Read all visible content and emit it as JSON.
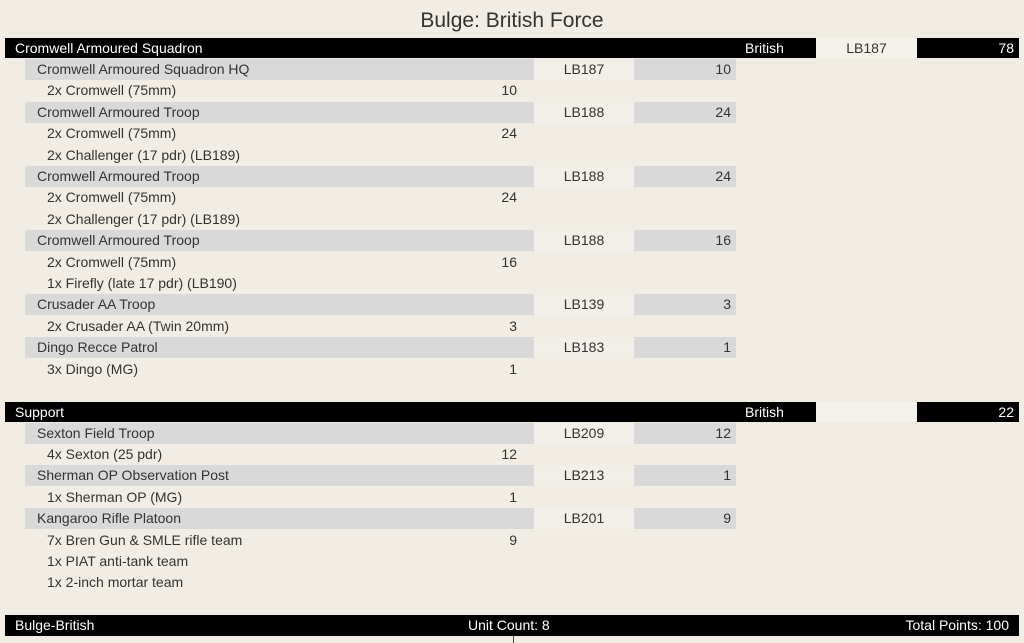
{
  "title": "Bulge: British Force",
  "sections": [
    {
      "name": "Cromwell Armoured Squadron",
      "nation": "British",
      "code": "LB187",
      "points": "78",
      "units": [
        {
          "name": "Cromwell Armoured Squadron HQ",
          "code": "LB187",
          "points": "10",
          "items": [
            {
              "text": "2x Cromwell (75mm)",
              "points": "10"
            }
          ]
        },
        {
          "name": "Cromwell Armoured Troop",
          "code": "LB188",
          "points": "24",
          "items": [
            {
              "text": "2x Cromwell (75mm)",
              "points": "24"
            },
            {
              "text": "2x Challenger (17 pdr) (LB189)",
              "points": ""
            }
          ]
        },
        {
          "name": "Cromwell Armoured Troop",
          "code": "LB188",
          "points": "24",
          "items": [
            {
              "text": "2x Cromwell (75mm)",
              "points": "24"
            },
            {
              "text": "2x Challenger (17 pdr) (LB189)",
              "points": ""
            }
          ]
        },
        {
          "name": "Cromwell Armoured Troop",
          "code": "LB188",
          "points": "16",
          "items": [
            {
              "text": "2x Cromwell (75mm)",
              "points": "16"
            },
            {
              "text": "1x Firefly (late 17 pdr) (LB190)",
              "points": ""
            }
          ]
        },
        {
          "name": "Crusader AA Troop",
          "code": "LB139",
          "points": "3",
          "items": [
            {
              "text": "2x Crusader AA (Twin 20mm)",
              "points": "3"
            }
          ]
        },
        {
          "name": "Dingo Recce Patrol",
          "code": "LB183",
          "points": "1",
          "items": [
            {
              "text": "3x Dingo (MG)",
              "points": "1"
            }
          ]
        }
      ]
    },
    {
      "name": "Support",
      "nation": "British",
      "code": "",
      "points": "22",
      "units": [
        {
          "name": "Sexton Field Troop",
          "code": "LB209",
          "points": "12",
          "items": [
            {
              "text": "4x Sexton (25 pdr)",
              "points": "12"
            }
          ]
        },
        {
          "name": "Sherman OP Observation Post",
          "code": "LB213",
          "points": "1",
          "items": [
            {
              "text": "1x Sherman OP (MG)",
              "points": "1"
            }
          ]
        },
        {
          "name": "Kangaroo Rifle Platoon",
          "code": "LB201",
          "points": "9",
          "items": [
            {
              "text": "7x Bren Gun & SMLE rifle team",
              "points": "9"
            },
            {
              "text": "1x PIAT anti-tank team",
              "points": ""
            },
            {
              "text": "1x 2-inch mortar team",
              "points": ""
            }
          ]
        }
      ]
    }
  ],
  "footer": {
    "name": "Bulge-British",
    "unit_count": "Unit Count: 8",
    "total_points": "Total Points: 100"
  }
}
